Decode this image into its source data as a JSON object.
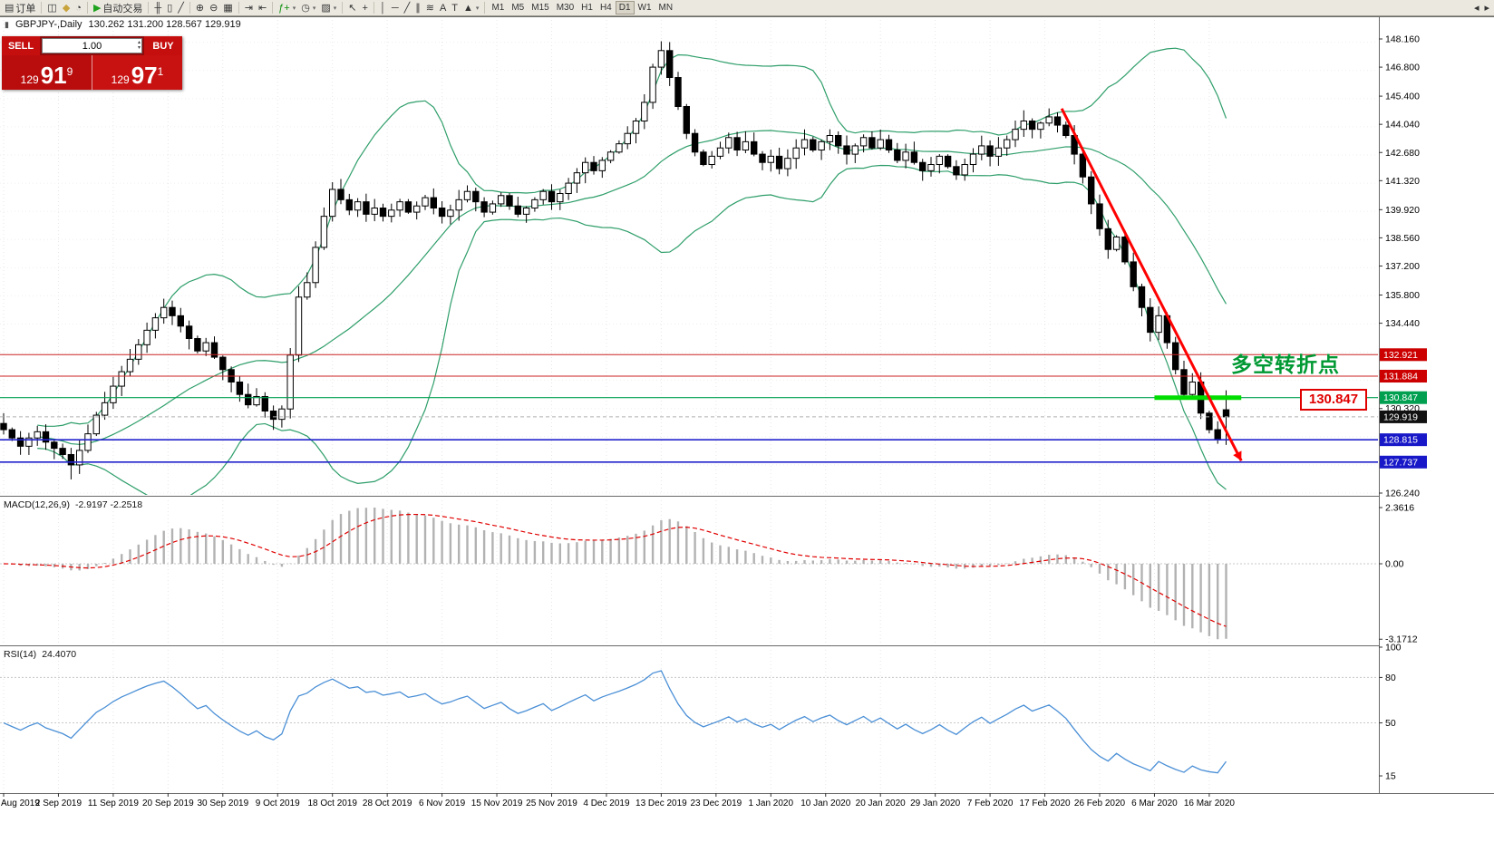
{
  "toolbar": {
    "items": [
      {
        "name": "new-order-button",
        "glyph": "▤",
        "label": "订单"
      },
      {
        "type": "sep"
      },
      {
        "name": "chart-window-button",
        "glyph": "◫"
      },
      {
        "name": "profile-button",
        "glyph": "◆",
        "color": "#c9a43c"
      },
      {
        "name": "refresh-button",
        "glyph": "◔"
      },
      {
        "type": "sep"
      },
      {
        "name": "autotrading-button",
        "glyph": "▶",
        "color": "#1fa31f",
        "label": "自动交易"
      },
      {
        "type": "sep"
      },
      {
        "name": "bar-chart-type-button",
        "glyph": "╫"
      },
      {
        "name": "candlestick-chart-type-button",
        "glyph": "▯"
      },
      {
        "name": "line-chart-type-button",
        "glyph": "╱"
      },
      {
        "type": "sep"
      },
      {
        "name": "zoom-in-button",
        "glyph": "⊕"
      },
      {
        "name": "zoom-out-button",
        "glyph": "⊖"
      },
      {
        "name": "grid-button",
        "glyph": "▦"
      },
      {
        "type": "sep"
      },
      {
        "name": "auto-scroll-button",
        "glyph": "⇥"
      },
      {
        "name": "chart-shift-button",
        "glyph": "⇤"
      },
      {
        "type": "sep"
      },
      {
        "name": "indicators-button",
        "glyph": "ƒ+",
        "color": "#0a8f0a",
        "dropdown": true
      },
      {
        "name": "period-button",
        "glyph": "◷",
        "dropdown": true
      },
      {
        "name": "template-button",
        "glyph": "▨",
        "dropdown": true
      },
      {
        "type": "sep"
      },
      {
        "name": "cursor-button",
        "glyph": "↖"
      },
      {
        "name": "crosshair-button",
        "glyph": "+"
      },
      {
        "type": "sep"
      },
      {
        "name": "vertical-line-button",
        "glyph": "│"
      },
      {
        "name": "horizontal-line-button",
        "glyph": "─"
      },
      {
        "name": "trendline-button",
        "glyph": "╱"
      },
      {
        "name": "channel-button",
        "glyph": "∥"
      },
      {
        "name": "fibonacci-button",
        "glyph": "≋"
      },
      {
        "name": "text-button",
        "glyph": "A"
      },
      {
        "name": "label-button",
        "glyph": "T"
      },
      {
        "name": "shapes-button",
        "glyph": "▲",
        "dropdown": true
      },
      {
        "type": "sep"
      }
    ],
    "timeframes": [
      "M1",
      "M5",
      "M15",
      "M30",
      "H1",
      "H4",
      "D1",
      "W1",
      "MN"
    ],
    "active_timeframe": "D1",
    "right_items": [
      {
        "name": "dock-left-button",
        "glyph": "◂"
      },
      {
        "name": "dock-right-button",
        "glyph": "▸"
      }
    ]
  },
  "icons": {
    "spinner_up": "▴",
    "spinner_down": "▾",
    "chart_mini": "▮"
  },
  "chart_header": {
    "symbol": "GBPJPY-,Daily",
    "ohlc": "130.262 131.200 128.567 129.919"
  },
  "trade_panel": {
    "sell_label": "SELL",
    "buy_label": "BUY",
    "lot_value": "1.00",
    "sell_prefix": "129",
    "sell_big": "91",
    "sell_sup": "9",
    "buy_prefix": "129",
    "buy_big": "97",
    "buy_sup": "1"
  },
  "price_scale": {
    "ticks": [
      "148.160",
      "146.800",
      "145.400",
      "144.040",
      "142.680",
      "141.320",
      "139.920",
      "138.560",
      "137.200",
      "135.800",
      "134.440",
      "130.320",
      "126.240"
    ],
    "level_boxes": [
      {
        "value": 132.921,
        "label": "132.921",
        "bg": "#cc0000"
      },
      {
        "value": 131.884,
        "label": "131.884",
        "bg": "#cc0000"
      },
      {
        "value": 130.847,
        "label": "130.847",
        "bg": "#00a050"
      },
      {
        "value": 129.919,
        "label": "129.919",
        "bg": "#111111"
      },
      {
        "value": 128.815,
        "label": "128.815",
        "bg": "#1818c8"
      },
      {
        "value": 127.737,
        "label": "127.737",
        "bg": "#1818c8"
      }
    ]
  },
  "levels": {
    "hlines": [
      {
        "value": 132.921,
        "color": "#cc2222",
        "width": 1
      },
      {
        "value": 131.884,
        "color": "#cc2222",
        "width": 1
      },
      {
        "value": 130.847,
        "color": "#00a050",
        "width": 1.2
      },
      {
        "value": 128.815,
        "color": "#2222cc",
        "width": 1.6
      },
      {
        "value": 127.737,
        "color": "#2222cc",
        "width": 1.6
      }
    ],
    "bid_line": {
      "value": 129.919,
      "color": "#b0b0b0"
    }
  },
  "annotations": {
    "turning_point_text": "多空转折点",
    "price_tag_text": "130.847",
    "arrow": {
      "from_index": 125.5,
      "from_price": 144.8,
      "to_index": 146.8,
      "to_price": 127.8
    },
    "highlight_segment": {
      "value": 130.847,
      "from_index": 136.5,
      "to_index": 146.8,
      "color": "#00dd00"
    }
  },
  "macd": {
    "label": "MACD(12,26,9)",
    "values": "-2.9197 -2.2518",
    "scale": [
      "2.3616",
      "0.00",
      "-3.1712"
    ]
  },
  "rsi": {
    "label": "RSI(14)",
    "value": "24.4070",
    "scale": [
      "100",
      "80",
      "50",
      "15"
    ],
    "level_lines": [
      80,
      50
    ]
  },
  "x_axis": {
    "labels": [
      "Aug 2019",
      "2 Sep 2019",
      "11 Sep 2019",
      "20 Sep 2019",
      "30 Sep 2019",
      "9 Oct 2019",
      "18 Oct 2019",
      "28 Oct 2019",
      "6 Nov 2019",
      "15 Nov 2019",
      "25 Nov 2019",
      "4 Dec 2019",
      "13 Dec 2019",
      "23 Dec 2019",
      "1 Jan 2020",
      "10 Jan 2020",
      "20 Jan 2020",
      "29 Jan 2020",
      "7 Feb 2020",
      "17 Feb 2020",
      "26 Feb 2020",
      "6 Mar 2020",
      "16 Mar 2020"
    ],
    "candles_per_label": 6.5
  },
  "colors": {
    "bollinger": "#2e9e6a",
    "candle_up": "#ffffff",
    "candle_down": "#000000",
    "arrow": "#ff0000",
    "macd_hist": "#b2b2b2",
    "macd_signal": "#e00000",
    "rsi_line": "#4a8fd6"
  },
  "chart_data": {
    "type": "candlestick",
    "symbol": "GBPJPY",
    "timeframe": "Daily",
    "title": "GBPJPY-,Daily",
    "ohlc_current": {
      "open": 130.262,
      "high": 131.2,
      "low": 128.567,
      "close": 129.919
    },
    "y_axis": {
      "top_price": 148.16,
      "bottom_price": 126.24
    },
    "indicators": [
      "Bollinger Bands (green)",
      "MACD(12,26,9)",
      "RSI(14)"
    ],
    "closes": [
      129.3,
      128.9,
      128.5,
      128.9,
      129.2,
      128.7,
      128.4,
      128.1,
      127.6,
      128.3,
      129.1,
      130.0,
      130.6,
      131.4,
      132.1,
      132.7,
      133.4,
      134.1,
      134.7,
      135.2,
      134.8,
      134.3,
      133.7,
      133.1,
      133.5,
      132.8,
      132.2,
      131.6,
      131.0,
      130.5,
      130.9,
      130.2,
      129.8,
      130.3,
      132.9,
      135.7,
      136.4,
      138.1,
      139.6,
      140.9,
      140.4,
      139.9,
      140.3,
      139.7,
      140.0,
      139.6,
      139.9,
      140.3,
      139.8,
      140.1,
      140.5,
      140.0,
      139.6,
      139.9,
      140.4,
      140.8,
      140.3,
      139.8,
      140.2,
      140.6,
      140.1,
      139.7,
      140.0,
      140.4,
      140.8,
      140.3,
      140.7,
      141.2,
      141.7,
      142.2,
      141.8,
      142.3,
      142.7,
      143.1,
      143.6,
      144.2,
      145.1,
      146.8,
      147.6,
      146.3,
      144.9,
      143.6,
      142.7,
      142.1,
      142.5,
      142.9,
      143.4,
      142.8,
      143.2,
      142.6,
      142.2,
      142.5,
      141.9,
      142.4,
      142.9,
      143.3,
      142.8,
      143.2,
      143.5,
      143.0,
      142.6,
      143.0,
      143.4,
      142.9,
      143.3,
      142.8,
      142.3,
      142.7,
      142.2,
      141.8,
      142.1,
      142.5,
      142.0,
      141.6,
      142.1,
      142.6,
      143.0,
      142.5,
      142.9,
      143.3,
      143.8,
      144.2,
      143.8,
      144.1,
      144.4,
      144.0,
      143.5,
      142.6,
      141.5,
      140.2,
      139.0,
      138.0,
      138.6,
      137.4,
      136.2,
      135.2,
      134.0,
      134.8,
      133.5,
      132.2,
      131.0,
      131.6,
      130.1,
      129.3,
      128.8,
      129.919
    ],
    "overrides": {
      "8": {
        "low": 126.9
      },
      "78": {
        "high": 148.05
      },
      "145": {
        "open": 130.262,
        "high": 131.2,
        "low": 128.567,
        "close": 129.919
      }
    }
  }
}
